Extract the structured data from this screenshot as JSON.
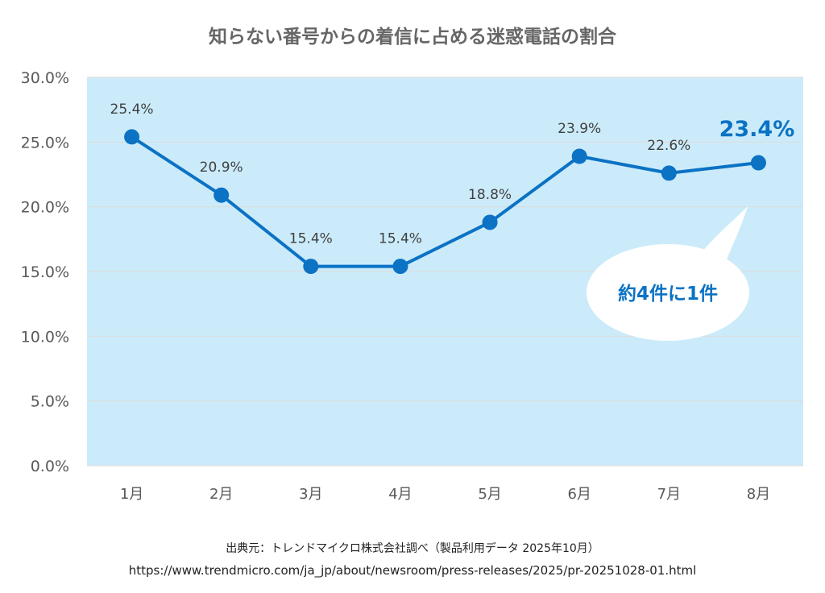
{
  "chart_data": {
    "type": "line",
    "title": "知らない番号からの着信に占める迷惑電話の割合",
    "categories": [
      "1月",
      "2月",
      "3月",
      "4月",
      "5月",
      "6月",
      "7月",
      "8月"
    ],
    "series": [
      {
        "values": [
          25.4,
          20.9,
          15.4,
          15.4,
          18.8,
          23.9,
          22.6,
          23.4
        ]
      }
    ],
    "data_labels": [
      "25.4%",
      "20.9%",
      "15.4%",
      "15.4%",
      "18.8%",
      "23.9%",
      "22.6%",
      "23.4%"
    ],
    "highlight_index": 7,
    "y_ticks": [
      "0.0%",
      "5.0%",
      "10.0%",
      "15.0%",
      "20.0%",
      "25.0%",
      "30.0%"
    ],
    "ylim": [
      0,
      30
    ],
    "xlabel": "",
    "ylabel": "",
    "grid": true,
    "annotation": "約4件に1件",
    "colors": {
      "plot_background": "#CBEBFA",
      "line": "#0B72C4",
      "gridline": "#DDDDDD",
      "highlight_label": "#0B72C4"
    }
  },
  "footer": {
    "source": "出典元：トレンドマイクロ株式会社調べ（製品利用データ 2025年10月）",
    "url": "https://www.trendmicro.com/ja_jp/about/newsroom/press-releases/2025/pr-20251028-01.html"
  }
}
